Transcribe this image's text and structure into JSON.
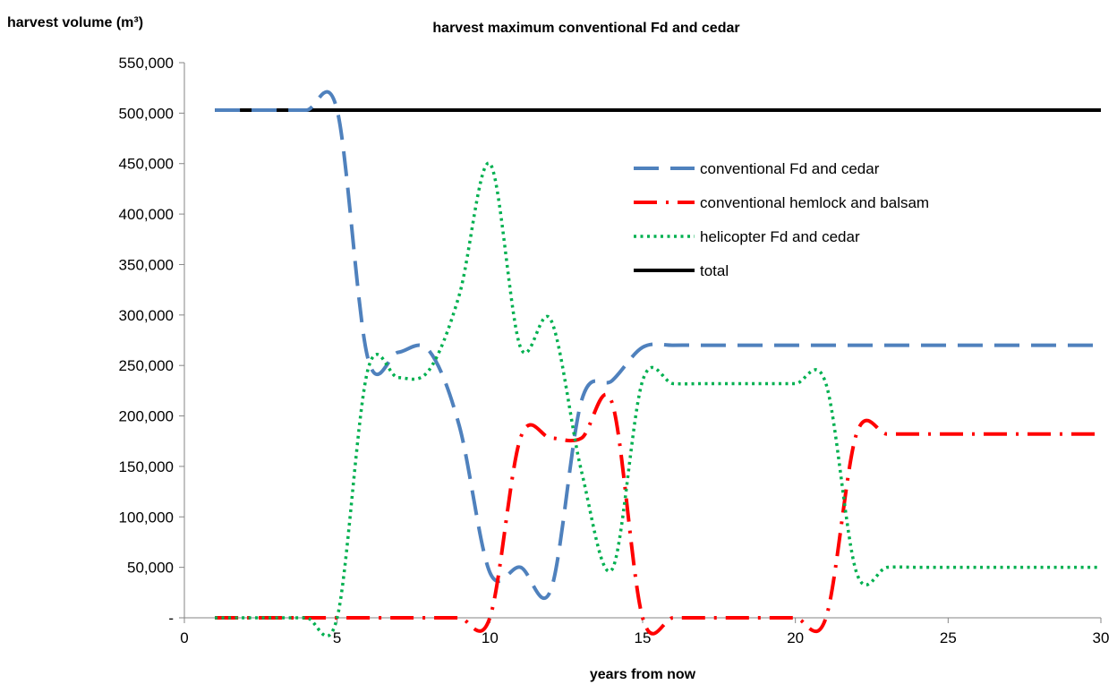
{
  "chart_data": {
    "type": "line",
    "title": "harvest maximum conventional Fd and cedar",
    "ylabel": "harvest volume (m³)",
    "xlabel": "years from now",
    "xlim": [
      0,
      30
    ],
    "ylim": [
      0,
      550000
    ],
    "x_ticks": [
      0,
      5,
      10,
      15,
      20,
      25,
      30
    ],
    "x_tick_labels": [
      "0",
      "5",
      "10",
      "15",
      "20",
      "25",
      "30"
    ],
    "y_ticks": [
      0,
      50000,
      100000,
      150000,
      200000,
      250000,
      300000,
      350000,
      400000,
      450000,
      500000,
      550000
    ],
    "y_tick_labels": [
      "-",
      "50,000",
      "100,000",
      "150,000",
      "200,000",
      "250,000",
      "300,000",
      "350,000",
      "400,000",
      "450,000",
      "500,000",
      "550,000"
    ],
    "grid": false,
    "legend_position": "upper-right inside",
    "x": [
      1,
      2,
      3,
      4,
      5,
      6,
      7,
      8,
      9,
      10,
      11,
      12,
      13,
      14,
      15,
      16,
      17,
      18,
      19,
      20,
      21,
      22,
      23,
      24,
      25,
      26,
      27,
      28,
      29,
      30
    ],
    "series": [
      {
        "name": "conventional Fd and cedar",
        "color": "#4F81BD",
        "style": "dashed",
        "values": [
          503000,
          503000,
          503000,
          503000,
          503000,
          258000,
          263000,
          265000,
          190000,
          45000,
          50000,
          28000,
          215000,
          235000,
          268000,
          270000,
          270000,
          270000,
          270000,
          270000,
          270000,
          270000,
          270000,
          270000,
          270000,
          270000,
          270000,
          270000,
          270000,
          270000
        ]
      },
      {
        "name": "conventional hemlock and balsam",
        "color": "#FF0000",
        "style": "dashdot",
        "values": [
          0,
          0,
          0,
          0,
          0,
          0,
          0,
          0,
          0,
          0,
          178000,
          178000,
          178000,
          213000,
          0,
          0,
          0,
          0,
          0,
          0,
          0,
          182000,
          182000,
          182000,
          182000,
          182000,
          182000,
          182000,
          182000,
          182000
        ]
      },
      {
        "name": "helicopter Fd and cedar",
        "color": "#00B050",
        "style": "dotted",
        "values": [
          0,
          0,
          0,
          0,
          0,
          245000,
          238000,
          245000,
          320000,
          450000,
          268000,
          295000,
          145000,
          48000,
          235000,
          232000,
          232000,
          232000,
          232000,
          232000,
          232000,
          45000,
          50000,
          50000,
          50000,
          50000,
          50000,
          50000,
          50000,
          50000
        ]
      },
      {
        "name": "total",
        "color": "#000000",
        "style": "solid",
        "values": [
          503000,
          503000,
          503000,
          503000,
          503000,
          503000,
          503000,
          503000,
          503000,
          503000,
          503000,
          503000,
          503000,
          503000,
          503000,
          503000,
          503000,
          503000,
          503000,
          503000,
          503000,
          503000,
          503000,
          503000,
          503000,
          503000,
          503000,
          503000,
          503000,
          503000
        ]
      }
    ]
  }
}
